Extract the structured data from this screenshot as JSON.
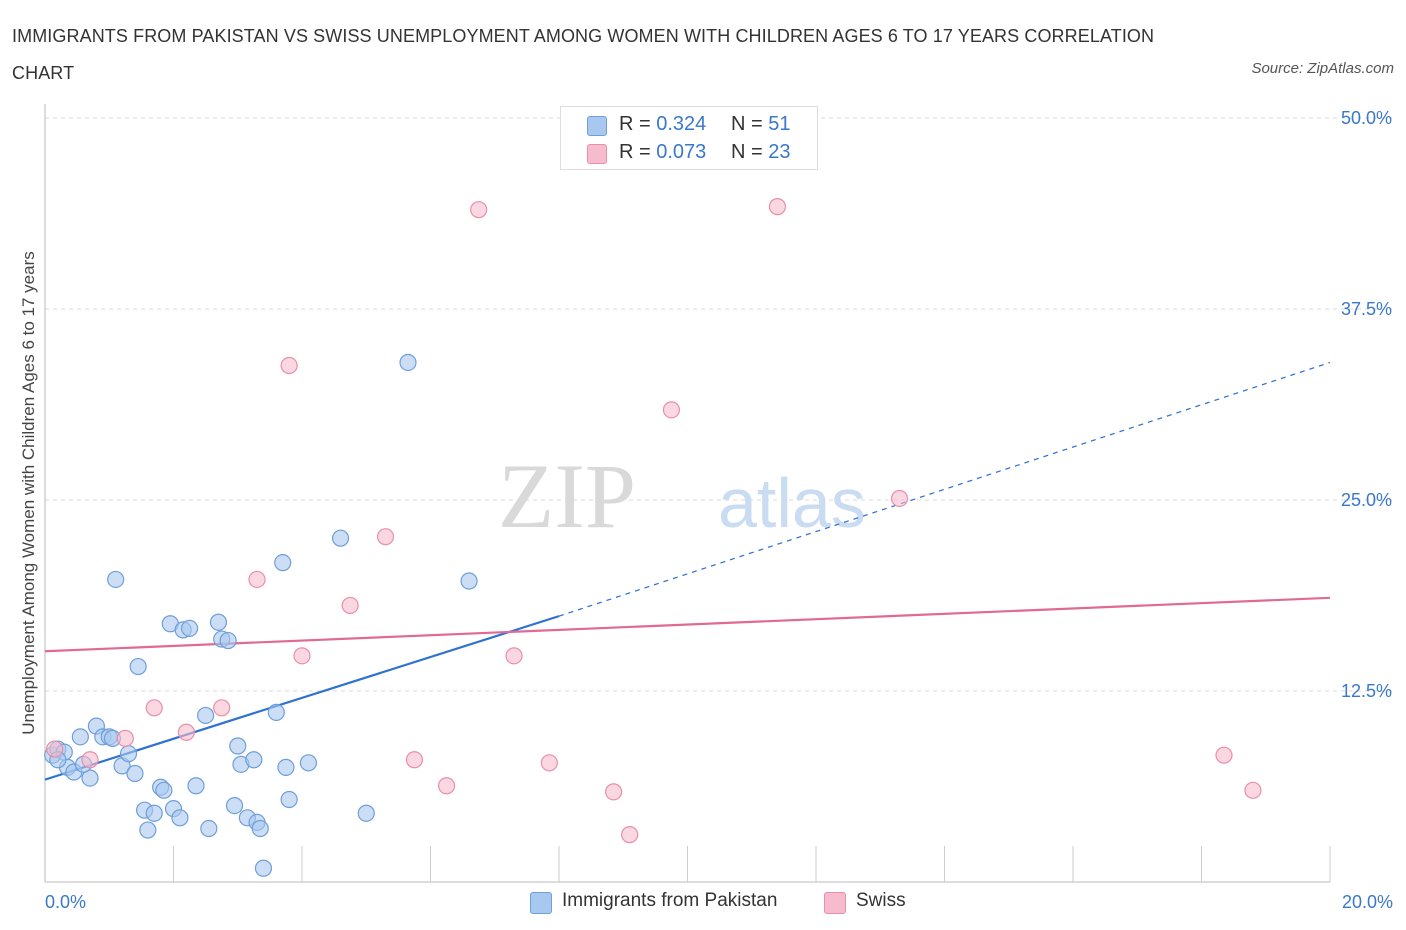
{
  "title": "IMMIGRANTS FROM PAKISTAN VS SWISS UNEMPLOYMENT AMONG WOMEN WITH CHILDREN AGES 6 TO 17 YEARS CORRELATION CHART",
  "source": "Source: ZipAtlas.com",
  "watermark": {
    "zip": "ZIP",
    "atlas": "atlas"
  },
  "legend": {
    "rows": [
      {
        "r_label": "R =",
        "r_value": "0.324",
        "n_label": "N =",
        "n_value": "51"
      },
      {
        "r_label": "R =",
        "r_value": "0.073",
        "n_label": "N =",
        "n_value": "23"
      }
    ]
  },
  "colors": {
    "blue_fill": "#a9c8ef",
    "blue_stroke": "#6f9fd8",
    "blue_line": "#2f72d0",
    "pink_fill": "#f6bccd",
    "pink_stroke": "#e88fa9",
    "pink_line": "#e06a93",
    "tick_text": "#3a78c9",
    "grid": "#d8d8d8"
  },
  "chart_data": {
    "type": "scatter",
    "title": "IMMIGRANTS FROM PAKISTAN VS SWISS UNEMPLOYMENT AMONG WOMEN WITH CHILDREN AGES 6 TO 17 YEARS CORRELATION CHART",
    "xlabel": "",
    "ylabel": "Unemployment Among Women with Children Ages 6 to 17 years",
    "xlim": [
      0,
      20
    ],
    "ylim": [
      0,
      50
    ],
    "x_ticks": [
      "0.0%",
      "20.0%"
    ],
    "y_ticks": [
      {
        "value": 12.5,
        "label": "12.5%"
      },
      {
        "value": 25.0,
        "label": "25.0%"
      },
      {
        "value": 37.5,
        "label": "37.5%"
      },
      {
        "value": 50.0,
        "label": "50.0%"
      }
    ],
    "series": [
      {
        "name": "Immigrants from Pakistan",
        "color": "blue",
        "points": [
          [
            0.12,
            8.3
          ],
          [
            0.2,
            8.7
          ],
          [
            0.3,
            8.5
          ],
          [
            0.35,
            7.5
          ],
          [
            0.45,
            7.2
          ],
          [
            0.55,
            9.5
          ],
          [
            0.7,
            6.8
          ],
          [
            0.8,
            10.2
          ],
          [
            0.9,
            9.5
          ],
          [
            1.0,
            9.5
          ],
          [
            1.05,
            9.4
          ],
          [
            1.2,
            7.6
          ],
          [
            1.3,
            8.4
          ],
          [
            1.4,
            7.1
          ],
          [
            1.45,
            14.1
          ],
          [
            1.55,
            4.7
          ],
          [
            1.6,
            3.4
          ],
          [
            1.7,
            4.5
          ],
          [
            1.8,
            6.2
          ],
          [
            1.85,
            6.0
          ],
          [
            1.95,
            16.9
          ],
          [
            2.0,
            4.8
          ],
          [
            2.1,
            4.2
          ],
          [
            2.15,
            16.5
          ],
          [
            2.25,
            16.6
          ],
          [
            2.35,
            6.3
          ],
          [
            2.5,
            10.9
          ],
          [
            2.55,
            3.5
          ],
          [
            2.7,
            17.0
          ],
          [
            2.75,
            15.9
          ],
          [
            2.85,
            15.8
          ],
          [
            2.95,
            5.0
          ],
          [
            3.0,
            8.9
          ],
          [
            3.05,
            7.7
          ],
          [
            3.15,
            4.2
          ],
          [
            3.25,
            8.0
          ],
          [
            3.3,
            3.9
          ],
          [
            3.35,
            3.5
          ],
          [
            3.4,
            0.9
          ],
          [
            3.6,
            11.1
          ],
          [
            3.7,
            20.9
          ],
          [
            3.75,
            7.5
          ],
          [
            3.8,
            5.4
          ],
          [
            4.1,
            7.8
          ],
          [
            1.1,
            19.8
          ],
          [
            4.6,
            22.5
          ],
          [
            5.0,
            4.5
          ],
          [
            5.65,
            34.0
          ],
          [
            6.6,
            19.7
          ],
          [
            0.2,
            8.0
          ],
          [
            0.6,
            7.7
          ]
        ],
        "trend": {
          "x0": 0,
          "y0": 6.7,
          "x1": 8.0,
          "y1": 17.4,
          "dashed_to_x": 20,
          "dashed_to_y": 34.0
        }
      },
      {
        "name": "Swiss",
        "color": "pink",
        "points": [
          [
            0.15,
            8.7
          ],
          [
            0.7,
            8.0
          ],
          [
            1.25,
            9.4
          ],
          [
            1.7,
            11.4
          ],
          [
            2.2,
            9.8
          ],
          [
            2.75,
            11.4
          ],
          [
            3.3,
            19.8
          ],
          [
            3.8,
            33.8
          ],
          [
            4.0,
            14.8
          ],
          [
            4.75,
            18.1
          ],
          [
            5.3,
            22.6
          ],
          [
            5.75,
            8.0
          ],
          [
            6.25,
            6.3
          ],
          [
            6.75,
            44.0
          ],
          [
            7.3,
            14.8
          ],
          [
            7.85,
            7.8
          ],
          [
            8.85,
            5.9
          ],
          [
            9.1,
            3.1
          ],
          [
            9.75,
            30.9
          ],
          [
            11.4,
            44.2
          ],
          [
            13.3,
            25.1
          ],
          [
            18.35,
            8.3
          ],
          [
            18.8,
            6.0
          ]
        ],
        "trend": {
          "x0": 0,
          "y0": 15.1,
          "x1": 20,
          "y1": 18.6
        }
      }
    ],
    "legend_labels": [
      "Immigrants from Pakistan",
      "Swiss"
    ]
  }
}
